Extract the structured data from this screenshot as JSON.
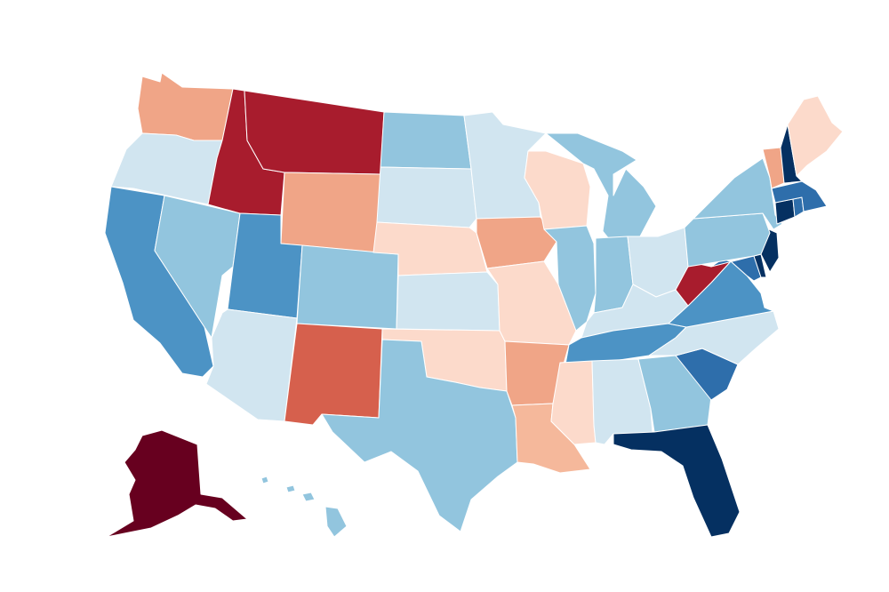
{
  "palette": {
    "darkest_red": "#67001f",
    "dark_red": "#a81c2d",
    "red": "#d6604d",
    "salmon": "#f0a587",
    "light_salmon": "#f5b89b",
    "pale_salmon": "#fcdacb",
    "pale_blue": "#d1e5f0",
    "light_blue": "#92c5de",
    "blue": "#4c93c5",
    "mid_blue": "#2e6eab",
    "dark_blue": "#053061"
  },
  "states": [
    {
      "id": "WA",
      "fill": "#f0a587"
    },
    {
      "id": "OR",
      "fill": "#d1e5f0"
    },
    {
      "id": "CA",
      "fill": "#4c93c5"
    },
    {
      "id": "NV",
      "fill": "#92c5de"
    },
    {
      "id": "ID",
      "fill": "#a81c2d"
    },
    {
      "id": "MT",
      "fill": "#a81c2d"
    },
    {
      "id": "WY",
      "fill": "#f0a587"
    },
    {
      "id": "UT",
      "fill": "#4c93c5"
    },
    {
      "id": "AZ",
      "fill": "#d1e5f0"
    },
    {
      "id": "CO",
      "fill": "#92c5de"
    },
    {
      "id": "NM",
      "fill": "#d6604d"
    },
    {
      "id": "ND",
      "fill": "#92c5de"
    },
    {
      "id": "SD",
      "fill": "#d1e5f0"
    },
    {
      "id": "NE",
      "fill": "#fcdacb"
    },
    {
      "id": "KS",
      "fill": "#d1e5f0"
    },
    {
      "id": "OK",
      "fill": "#fcdacb"
    },
    {
      "id": "TX",
      "fill": "#92c5de"
    },
    {
      "id": "MN",
      "fill": "#d1e5f0"
    },
    {
      "id": "IA",
      "fill": "#f0a587"
    },
    {
      "id": "MO",
      "fill": "#fcdacb"
    },
    {
      "id": "AR",
      "fill": "#f0a587"
    },
    {
      "id": "LA",
      "fill": "#f5b89b"
    },
    {
      "id": "WI",
      "fill": "#fcdacb"
    },
    {
      "id": "IL",
      "fill": "#92c5de"
    },
    {
      "id": "MI",
      "fill": "#92c5de"
    },
    {
      "id": "IN",
      "fill": "#92c5de"
    },
    {
      "id": "OH",
      "fill": "#d1e5f0"
    },
    {
      "id": "KY",
      "fill": "#d1e5f0"
    },
    {
      "id": "TN",
      "fill": "#4c93c5"
    },
    {
      "id": "MS",
      "fill": "#fcdacb"
    },
    {
      "id": "AL",
      "fill": "#d1e5f0"
    },
    {
      "id": "GA",
      "fill": "#92c5de"
    },
    {
      "id": "FL",
      "fill": "#053061"
    },
    {
      "id": "SC",
      "fill": "#2e6eab"
    },
    {
      "id": "NC",
      "fill": "#d1e5f0"
    },
    {
      "id": "VA",
      "fill": "#4c93c5"
    },
    {
      "id": "WV",
      "fill": "#a81c2d"
    },
    {
      "id": "MD",
      "fill": "#2e6eab"
    },
    {
      "id": "DE",
      "fill": "#053061"
    },
    {
      "id": "NJ",
      "fill": "#053061"
    },
    {
      "id": "PA",
      "fill": "#92c5de"
    },
    {
      "id": "NY",
      "fill": "#92c5de"
    },
    {
      "id": "CT",
      "fill": "#053061"
    },
    {
      "id": "RI",
      "fill": "#2e6eab"
    },
    {
      "id": "MA",
      "fill": "#2e6eab"
    },
    {
      "id": "VT",
      "fill": "#f0a587"
    },
    {
      "id": "NH",
      "fill": "#053061"
    },
    {
      "id": "ME",
      "fill": "#fcdacb"
    },
    {
      "id": "AK",
      "fill": "#67001f"
    },
    {
      "id": "HI",
      "fill": "#92c5de"
    }
  ]
}
